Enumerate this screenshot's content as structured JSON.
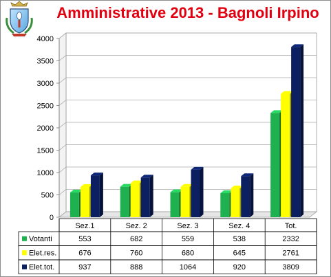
{
  "chart_data": {
    "type": "bar",
    "title": "Amministrative 2013 - Bagnoli Irpino",
    "categories": [
      "Sez.1",
      "Sez. 2",
      "Sez. 3",
      "Sez. 4",
      "Tot."
    ],
    "series": [
      {
        "name": "Votanti",
        "values": [
          553,
          682,
          559,
          538,
          2332
        ],
        "color": "#1fb050"
      },
      {
        "name": "Elet.res.",
        "values": [
          676,
          760,
          680,
          645,
          2761
        ],
        "color": "#ffff00"
      },
      {
        "name": "Elet.tot.",
        "values": [
          937,
          888,
          1064,
          920,
          3809
        ],
        "color": "#0c1f60"
      }
    ],
    "ylim": [
      0,
      4000
    ],
    "yticks": [
      0,
      500,
      1000,
      1500,
      2000,
      2500,
      3000,
      3500,
      4000
    ],
    "grid": true,
    "style": "3d-clustered-bar-with-data-table"
  },
  "logo": {
    "name": "municipal-crest"
  }
}
